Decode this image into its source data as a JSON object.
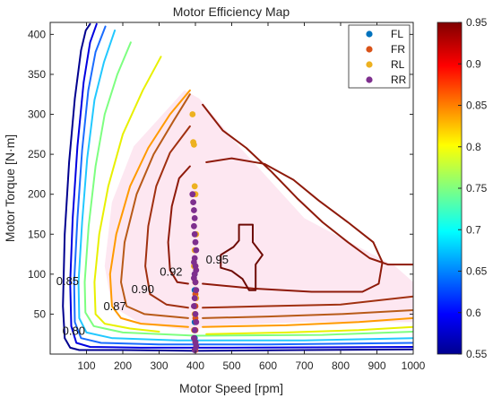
{
  "chart_data": {
    "type": "contour",
    "title": "Motor Efficiency Map",
    "xlabel": "Motor Speed [rpm]",
    "ylabel": "Motor Torque [N·m]",
    "xlim": [
      0,
      1000
    ],
    "ylim": [
      0,
      415
    ],
    "xticks": [
      "100",
      "200",
      "300",
      "400",
      "500",
      "600",
      "700",
      "800",
      "900",
      "1000"
    ],
    "yticks": [
      "50",
      "100",
      "150",
      "200",
      "250",
      "300",
      "350",
      "400"
    ],
    "colorbar": {
      "min": 0.55,
      "max": 0.95,
      "ticks": [
        "0.55",
        "0.6",
        "0.65",
        "0.7",
        "0.75",
        "0.8",
        "0.85",
        "0.9",
        "0.95"
      ],
      "colormap": "jet"
    },
    "contour_labels": [
      {
        "text": "0.80",
        "x": 65,
        "y": 28
      },
      {
        "text": "0.85",
        "x": 48,
        "y": 90
      },
      {
        "text": "0.87",
        "x": 178,
        "y": 59
      },
      {
        "text": "0.90",
        "x": 255,
        "y": 80
      },
      {
        "text": "0.92",
        "x": 333,
        "y": 102
      },
      {
        "text": "0.95",
        "x": 460,
        "y": 117
      }
    ],
    "contours": [
      {
        "level": 0.55,
        "color": "#00008f",
        "points": [
          [
            110,
            413
          ],
          [
            98,
            405
          ],
          [
            85,
            380
          ],
          [
            68,
            320
          ],
          [
            52,
            240
          ],
          [
            40,
            150
          ],
          [
            35,
            60
          ],
          [
            40,
            20
          ],
          [
            55,
            8
          ],
          [
            80,
            5
          ],
          [
            200,
            5
          ],
          [
            400,
            4
          ],
          [
            700,
            5
          ],
          [
            1000,
            6
          ]
        ]
      },
      {
        "level": 0.6,
        "color": "#0000e0",
        "points": [
          [
            128,
            413
          ],
          [
            110,
            390
          ],
          [
            92,
            340
          ],
          [
            75,
            260
          ],
          [
            62,
            170
          ],
          [
            55,
            90
          ],
          [
            58,
            35
          ],
          [
            72,
            14
          ],
          [
            110,
            9
          ],
          [
            250,
            8
          ],
          [
            500,
            8
          ],
          [
            1000,
            9
          ]
        ]
      },
      {
        "level": 0.65,
        "color": "#1a6cff",
        "points": [
          [
            152,
            410
          ],
          [
            125,
            378
          ],
          [
            105,
            330
          ],
          [
            88,
            255
          ],
          [
            75,
            170
          ],
          [
            66,
            90
          ],
          [
            68,
            40
          ],
          [
            85,
            20
          ],
          [
            140,
            14
          ],
          [
            300,
            12
          ],
          [
            600,
            12
          ],
          [
            1000,
            14
          ]
        ]
      },
      {
        "level": 0.7,
        "color": "#22c8ff",
        "points": [
          [
            178,
            405
          ],
          [
            148,
            365
          ],
          [
            122,
            318
          ],
          [
            102,
            245
          ],
          [
            88,
            165
          ],
          [
            78,
            90
          ],
          [
            80,
            45
          ],
          [
            100,
            27
          ],
          [
            170,
            20
          ],
          [
            350,
            17
          ],
          [
            700,
            17
          ],
          [
            1000,
            20
          ]
        ]
      },
      {
        "level": 0.75,
        "color": "#7dff80",
        "points": [
          [
            222,
            390
          ],
          [
            185,
            350
          ],
          [
            150,
            300
          ],
          [
            125,
            235
          ],
          [
            106,
            160
          ],
          [
            95,
            90
          ],
          [
            97,
            52
          ],
          [
            120,
            35
          ],
          [
            200,
            27
          ],
          [
            400,
            23
          ],
          [
            750,
            24
          ],
          [
            1000,
            28
          ]
        ]
      },
      {
        "level": 0.8,
        "color": "#e8f000",
        "points": [
          [
            305,
            372
          ],
          [
            255,
            330
          ],
          [
            200,
            275
          ],
          [
            160,
            210
          ],
          [
            135,
            150
          ],
          [
            122,
            90
          ],
          [
            125,
            50
          ],
          [
            150,
            38
          ],
          [
            220,
            32
          ],
          [
            300,
            28
          ]
        ]
      },
      {
        "level": 0.8,
        "color": "#e8f000",
        "points": [
          [
            430,
            25
          ],
          [
            650,
            27
          ],
          [
            850,
            30
          ],
          [
            1000,
            34
          ]
        ]
      },
      {
        "level": 0.85,
        "color": "#ff9a00",
        "points": [
          [
            385,
            330
          ],
          [
            330,
            300
          ],
          [
            270,
            258
          ],
          [
            220,
            210
          ],
          [
            182,
            150
          ],
          [
            165,
            100
          ],
          [
            170,
            60
          ],
          [
            195,
            45
          ],
          [
            250,
            38
          ],
          [
            380,
            34
          ]
        ]
      },
      {
        "level": 0.85,
        "color": "#ff9a00",
        "points": [
          [
            420,
            34
          ],
          [
            650,
            36
          ],
          [
            850,
            40
          ],
          [
            1000,
            45
          ]
        ]
      },
      {
        "level": 0.87,
        "color": "#b85a18",
        "points": [
          [
            385,
            325
          ],
          [
            340,
            292
          ],
          [
            285,
            250
          ],
          [
            238,
            200
          ],
          [
            205,
            140
          ],
          [
            195,
            90
          ],
          [
            210,
            60
          ],
          [
            260,
            50
          ],
          [
            380,
            45
          ]
        ]
      },
      {
        "level": 0.87,
        "color": "#b85a18",
        "points": [
          [
            420,
            45
          ],
          [
            600,
            47
          ],
          [
            800,
            50
          ],
          [
            1000,
            55
          ]
        ]
      },
      {
        "level": 0.9,
        "color": "#a03010",
        "points": [
          [
            385,
            285
          ],
          [
            330,
            252
          ],
          [
            292,
            210
          ],
          [
            270,
            160
          ],
          [
            262,
            110
          ],
          [
            275,
            75
          ],
          [
            320,
            62
          ],
          [
            380,
            58
          ]
        ]
      },
      {
        "level": 0.9,
        "color": "#a03010",
        "points": [
          [
            420,
            58
          ],
          [
            600,
            60
          ],
          [
            800,
            62
          ],
          [
            1000,
            72
          ]
        ]
      },
      {
        "level": 0.92,
        "color": "#8e1a0a",
        "points": [
          [
            420,
            312
          ],
          [
            475,
            280
          ],
          [
            540,
            258
          ],
          [
            610,
            228
          ],
          [
            680,
            195
          ],
          [
            750,
            165
          ],
          [
            820,
            140
          ],
          [
            880,
            120
          ],
          [
            930,
            112
          ],
          [
            1000,
            112
          ]
        ]
      },
      {
        "level": 0.92,
        "color": "#8e1a0a",
        "points": [
          [
            385,
            235
          ],
          [
            355,
            220
          ],
          [
            335,
            185
          ],
          [
            325,
            140
          ],
          [
            330,
            105
          ],
          [
            350,
            90
          ],
          [
            380,
            88
          ]
        ]
      },
      {
        "level": 0.92,
        "color": "#8e1a0a",
        "points": [
          [
            420,
            88
          ],
          [
            560,
            82
          ],
          [
            720,
            78
          ],
          [
            860,
            78
          ],
          [
            905,
            88
          ],
          [
            915,
            115
          ],
          [
            890,
            140
          ],
          [
            820,
            165
          ],
          [
            740,
            192
          ],
          [
            670,
            218
          ],
          [
            590,
            238
          ],
          [
            500,
            245
          ],
          [
            430,
            240
          ]
        ]
      },
      {
        "level": 0.95,
        "color": "#6e0b05",
        "points": [
          [
            520,
            162
          ],
          [
            558,
            162
          ],
          [
            558,
            140
          ],
          [
            585,
            124
          ],
          [
            566,
            112
          ],
          [
            566,
            80
          ],
          [
            548,
            80
          ],
          [
            530,
            94
          ],
          [
            500,
            104
          ],
          [
            470,
            108
          ],
          [
            470,
            124
          ],
          [
            505,
            134
          ],
          [
            520,
            142
          ],
          [
            520,
            162
          ]
        ]
      }
    ],
    "series": [
      {
        "name": "FL",
        "color": "#0072bd",
        "x": [
          398,
          398,
          398,
          398,
          398,
          398
        ],
        "y": [
          5,
          20,
          40,
          60,
          80,
          100
        ]
      },
      {
        "name": "FR",
        "color": "#d95319",
        "x": [
          400,
          400,
          400,
          400,
          400,
          400,
          400,
          400
        ],
        "y": [
          5,
          15,
          30,
          45,
          60,
          75,
          90,
          110
        ]
      },
      {
        "name": "RL",
        "color": "#edb120",
        "x": [
          392,
          394,
          396,
          398,
          400,
          402,
          398,
          396,
          400,
          402,
          398,
          396
        ],
        "y": [
          300,
          265,
          262,
          210,
          200,
          150,
          130,
          110,
          90,
          70,
          50,
          30
        ]
      },
      {
        "name": "RR",
        "color": "#7e2f8e",
        "x": [
          392,
          394,
          396,
          398,
          396,
          398,
          400,
          402,
          398,
          396,
          400,
          402,
          398,
          396,
          400,
          402,
          398,
          396,
          400,
          402,
          398,
          396,
          400,
          402,
          398
        ],
        "y": [
          200,
          190,
          180,
          170,
          160,
          150,
          140,
          130,
          120,
          115,
          110,
          105,
          100,
          95,
          90,
          80,
          70,
          60,
          50,
          40,
          30,
          20,
          15,
          10,
          5
        ]
      }
    ]
  }
}
